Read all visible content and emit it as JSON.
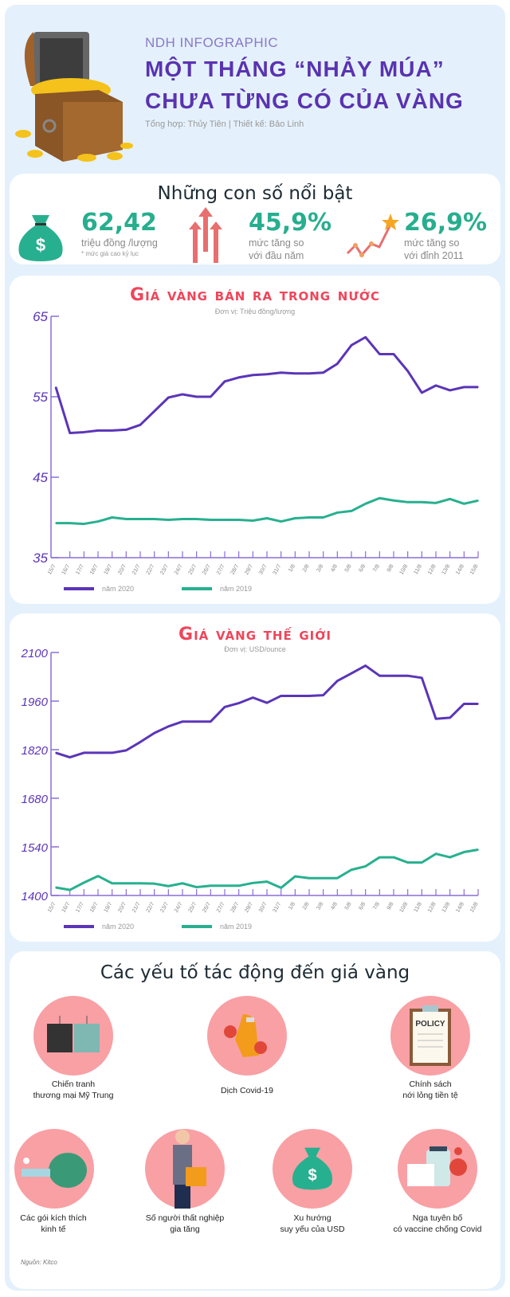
{
  "header": {
    "kicker": "NDH INFOGRAPHIC",
    "title_line1": "MỘT THÁNG “NHẢY MÚA”",
    "title_line2": "CHƯA TỪNG CÓ CỦA VÀNG",
    "credit": "Tổng hợp: Thủy Tiên | Thiết kế: Bảo Linh"
  },
  "highlights": {
    "title": "Những con số nổi bật",
    "items": [
      {
        "value": "62,42",
        "label": "triệu đồng /lượng",
        "note": "* mức giá cao kỷ lục",
        "icon": "money-bag-icon"
      },
      {
        "value": "45,9%",
        "label_line1": "mức tăng so",
        "label_line2": "với đầu năm",
        "icon": "up-arrows-icon"
      },
      {
        "value": "26,9%",
        "label_line1": "mức tăng so",
        "label_line2": "với đỉnh 2011",
        "icon": "star-trend-icon"
      }
    ]
  },
  "colors": {
    "y2020": "#5b35b8",
    "y2019": "#27b08f",
    "title_red": "#f0455a"
  },
  "chart_data": [
    {
      "type": "line",
      "title": "Giá vàng bán ra trong nước",
      "subtitle": "Đơn vị: Triệu đồng/lượng",
      "ylim": [
        35,
        65
      ],
      "yticks": [
        "35",
        "45",
        "55",
        "65"
      ],
      "categories": [
        "15/7",
        "16/7",
        "17/7",
        "18/7",
        "19/7",
        "20/7",
        "21/7",
        "22/7",
        "23/7",
        "24/7",
        "25/7",
        "26/7",
        "27/7",
        "28/7",
        "29/7",
        "30/7",
        "31/7",
        "1/8",
        "2/8",
        "3/8",
        "4/8",
        "5/8",
        "6/8",
        "7/8",
        "9/8",
        "10/8",
        "11/8",
        "12/8",
        "13/8",
        "14/8",
        "15/8"
      ],
      "series": [
        {
          "name": "năm 2020",
          "values": [
            56.2,
            50.5,
            50.6,
            50.8,
            50.8,
            50.9,
            51.5,
            53.2,
            54.9,
            55.3,
            55.0,
            55.0,
            56.9,
            57.4,
            57.7,
            57.8,
            58.0,
            57.9,
            57.9,
            58.0,
            59.1,
            61.4,
            62.4,
            60.3,
            60.3,
            58.2,
            55.5,
            56.4,
            55.8,
            56.2,
            56.2
          ]
        },
        {
          "name": "năm 2019",
          "values": [
            39.3,
            39.3,
            39.2,
            39.5,
            40.0,
            39.8,
            39.8,
            39.8,
            39.7,
            39.8,
            39.8,
            39.7,
            39.7,
            39.7,
            39.6,
            39.9,
            39.5,
            39.9,
            40.0,
            40.0,
            40.6,
            40.8,
            41.7,
            42.4,
            42.1,
            41.9,
            41.9,
            41.8,
            42.3,
            41.7,
            42.1
          ]
        }
      ]
    },
    {
      "type": "line",
      "title": "Giá vàng thế giới",
      "subtitle": "Đơn vị: USD/ounce",
      "ylim": [
        1400,
        2100
      ],
      "yticks": [
        "1400",
        "1540",
        "1680",
        "1820",
        "1960",
        "2100"
      ],
      "categories": [
        "15/7",
        "16/7",
        "17/7",
        "18/7",
        "19/7",
        "20/7",
        "21/7",
        "22/7",
        "23/7",
        "24/7",
        "25/7",
        "26/7",
        "27/7",
        "28/7",
        "29/7",
        "30/7",
        "31/7",
        "1/8",
        "2/8",
        "3/8",
        "4/8",
        "5/8",
        "6/8",
        "7/8",
        "9/8",
        "10/8",
        "11/8",
        "12/8",
        "13/8",
        "14/8",
        "15/8"
      ],
      "series": [
        {
          "name": "năm 2020",
          "values": [
            1811,
            1798,
            1811,
            1811,
            1811,
            1818,
            1842,
            1868,
            1887,
            1901,
            1901,
            1901,
            1943,
            1954,
            1970,
            1955,
            1975,
            1975,
            1975,
            1977,
            2018,
            2040,
            2062,
            2033,
            2033,
            2033,
            2027,
            1909,
            1912,
            1952,
            1952
          ]
        },
        {
          "name": "năm 2019",
          "values": [
            1423,
            1416,
            1437,
            1456,
            1435,
            1435,
            1435,
            1434,
            1427,
            1435,
            1424,
            1428,
            1428,
            1428,
            1436,
            1440,
            1422,
            1455,
            1450,
            1450,
            1450,
            1474,
            1484,
            1510,
            1510,
            1495,
            1495,
            1520,
            1510,
            1525,
            1532
          ]
        }
      ]
    }
  ],
  "factors": {
    "title": "Các yếu tố tác động đến giá vàng",
    "items": [
      {
        "line1": "Chiến tranh",
        "line2": "thương mại Mỹ Trung",
        "icon": "shipping-containers-icon"
      },
      {
        "line1": "Dịch Covid-19",
        "line2": "",
        "icon": "virus-icon"
      },
      {
        "line1": "Chính sách",
        "line2": "nới lỏng tiền tệ",
        "icon": "policy-clipboard-icon",
        "badge": "POLICY"
      },
      {
        "line1": "Các gói kích thích",
        "line2": "kinh tế",
        "icon": "piggy-bank-icon"
      },
      {
        "line1": "Số người thất nghiệp",
        "line2": "gia tăng",
        "icon": "unemployed-person-icon"
      },
      {
        "line1": "Xu hướng",
        "line2": "suy yếu của USD",
        "icon": "money-bag-icon"
      },
      {
        "line1": "Nga tuyên bố",
        "line2": "có vaccine chống Covid",
        "icon": "vaccine-icon"
      }
    ],
    "source": "Nguồn: Kitco"
  }
}
